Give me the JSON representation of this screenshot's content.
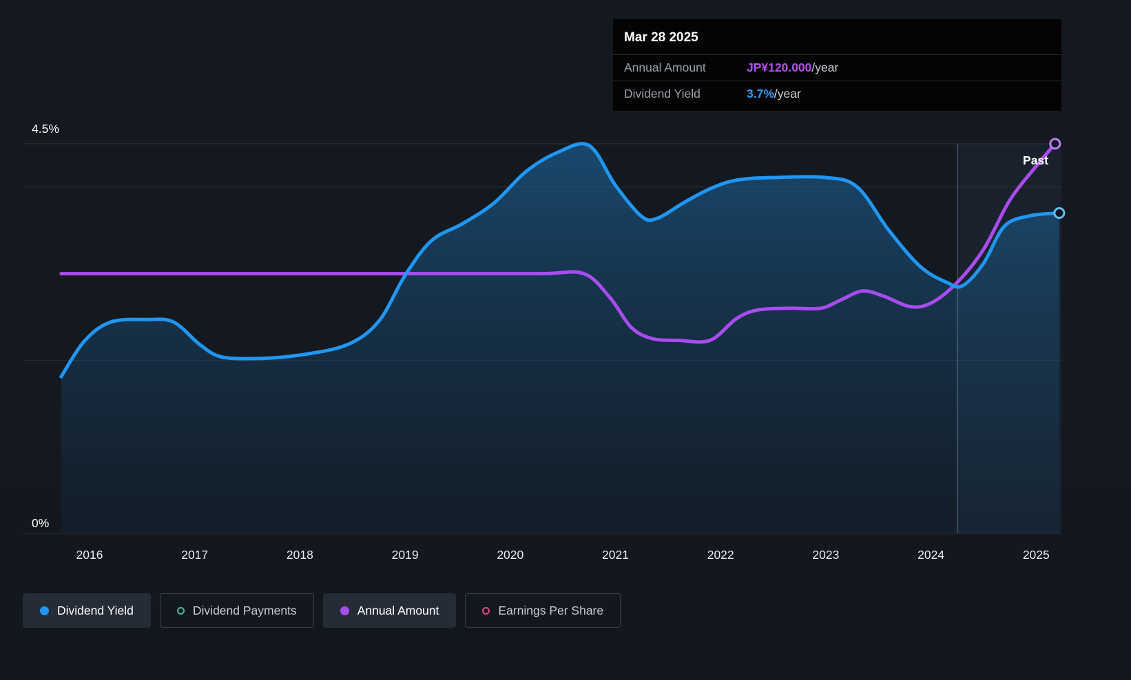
{
  "tooltip": {
    "date": "Mar 28 2025",
    "rows": [
      {
        "label": "Annual Amount",
        "value": "JP¥120.000",
        "suffix": "/year",
        "color": "#b44df0"
      },
      {
        "label": "Dividend Yield",
        "value": "3.7%",
        "suffix": "/year",
        "color": "#2e9df5"
      }
    ]
  },
  "chart_data": {
    "type": "area",
    "x_axis": {
      "ticks": [
        2016,
        2017,
        2018,
        2019,
        2020,
        2021,
        2022,
        2023,
        2024,
        2025
      ],
      "range": [
        2015.72,
        2025.27
      ]
    },
    "y_axis": {
      "unit": "%",
      "range": [
        0,
        4.5
      ],
      "label_top": "4.5%",
      "label_bottom": "0%",
      "gridlines": [
        4.5,
        4.0,
        2.0,
        0
      ]
    },
    "past_divider_x": 2024.25,
    "past_label": "Past",
    "series": [
      {
        "name": "Dividend Yield",
        "type": "area",
        "color": "#2196f3",
        "fill_top": "rgba(31,130,205,0.45)",
        "fill_bottom": "rgba(18,58,92,0.16)",
        "end_value": "3.7%",
        "points": [
          [
            2015.73,
            1.81
          ],
          [
            2015.95,
            2.22
          ],
          [
            2016.2,
            2.44
          ],
          [
            2016.55,
            2.47
          ],
          [
            2016.8,
            2.44
          ],
          [
            2017.05,
            2.18
          ],
          [
            2017.25,
            2.04
          ],
          [
            2017.6,
            2.02
          ],
          [
            2018.0,
            2.06
          ],
          [
            2018.45,
            2.18
          ],
          [
            2018.75,
            2.45
          ],
          [
            2019.0,
            2.98
          ],
          [
            2019.25,
            3.38
          ],
          [
            2019.55,
            3.58
          ],
          [
            2019.85,
            3.82
          ],
          [
            2020.15,
            4.18
          ],
          [
            2020.45,
            4.4
          ],
          [
            2020.75,
            4.48
          ],
          [
            2021.0,
            4.02
          ],
          [
            2021.25,
            3.66
          ],
          [
            2021.4,
            3.64
          ],
          [
            2021.65,
            3.82
          ],
          [
            2021.9,
            3.98
          ],
          [
            2022.15,
            4.08
          ],
          [
            2022.5,
            4.11
          ],
          [
            2023.0,
            4.11
          ],
          [
            2023.3,
            4.0
          ],
          [
            2023.6,
            3.5
          ],
          [
            2023.9,
            3.08
          ],
          [
            2024.15,
            2.9
          ],
          [
            2024.3,
            2.86
          ],
          [
            2024.5,
            3.12
          ],
          [
            2024.7,
            3.55
          ],
          [
            2024.95,
            3.67
          ],
          [
            2025.22,
            3.7
          ]
        ]
      },
      {
        "name": "Annual Amount",
        "type": "line",
        "color": "#a84cf0",
        "end_value": "JP¥120.000/year",
        "points": [
          [
            2015.73,
            3.0
          ],
          [
            2016.5,
            3.0
          ],
          [
            2017.5,
            3.0
          ],
          [
            2018.5,
            3.0
          ],
          [
            2019.5,
            3.0
          ],
          [
            2020.3,
            3.0
          ],
          [
            2020.7,
            3.0
          ],
          [
            2020.95,
            2.72
          ],
          [
            2021.15,
            2.38
          ],
          [
            2021.35,
            2.25
          ],
          [
            2021.6,
            2.23
          ],
          [
            2021.9,
            2.23
          ],
          [
            2022.15,
            2.48
          ],
          [
            2022.35,
            2.58
          ],
          [
            2022.65,
            2.6
          ],
          [
            2022.95,
            2.6
          ],
          [
            2023.15,
            2.7
          ],
          [
            2023.35,
            2.8
          ],
          [
            2023.55,
            2.74
          ],
          [
            2023.8,
            2.62
          ],
          [
            2024.0,
            2.66
          ],
          [
            2024.25,
            2.9
          ],
          [
            2024.5,
            3.28
          ],
          [
            2024.75,
            3.85
          ],
          [
            2025.0,
            4.24
          ],
          [
            2025.18,
            4.5
          ]
        ]
      }
    ]
  },
  "legend": {
    "items": [
      {
        "label": "Dividend Yield",
        "marker": "filled",
        "color": "#2196f3"
      },
      {
        "label": "Dividend Payments",
        "marker": "hollow",
        "color": "#43b9a9"
      },
      {
        "label": "Annual Amount",
        "marker": "filled",
        "color": "#a84cf0"
      },
      {
        "label": "Earnings Per Share",
        "marker": "hollow",
        "color": "#df4a7e"
      }
    ]
  }
}
